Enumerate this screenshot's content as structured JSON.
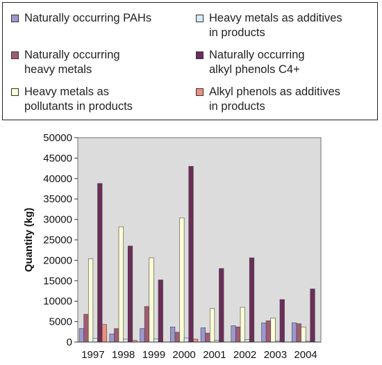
{
  "chart_data": {
    "type": "bar",
    "title": "",
    "xlabel": "",
    "ylabel": "Quantity (kg)",
    "ylim": [
      0,
      50000
    ],
    "yticks": [
      0,
      5000,
      10000,
      15000,
      20000,
      25000,
      30000,
      35000,
      40000,
      45000,
      50000
    ],
    "grid": false,
    "legend_position": "top",
    "categories": [
      "1997",
      "1998",
      "1999",
      "2000",
      "2001",
      "2002",
      "2003",
      "2004"
    ],
    "series": [
      {
        "name": "Naturally occurring PAHs",
        "color": "#9b97cf",
        "values": [
          3300,
          2000,
          3300,
          3700,
          3500,
          4000,
          4700,
          4700
        ]
      },
      {
        "name": "Naturally occurring\nheavy metals",
        "color": "#a05c72",
        "values": [
          6800,
          3300,
          8700,
          2400,
          2200,
          3700,
          5200,
          4500
        ]
      },
      {
        "name": "Heavy metals as\npollutants in products",
        "color": "#fdfdd5",
        "values": [
          20400,
          28200,
          20600,
          30400,
          8200,
          8500,
          5900,
          3700
        ]
      },
      {
        "name": "Heavy metals as additives\nin products",
        "color": "#d2ecf6",
        "values": [
          900,
          700,
          800,
          1000,
          400,
          600,
          300,
          200
        ]
      },
      {
        "name": "Naturally occurring\nalkyl phenols C4+",
        "color": "#6b2e58",
        "values": [
          38800,
          23500,
          15200,
          43000,
          18000,
          20600,
          10400,
          13000
        ]
      },
      {
        "name": "Alkyl phenols as additives\nin products",
        "color": "#ee8f82",
        "values": [
          4300,
          400,
          0,
          700,
          0,
          0,
          0,
          0
        ]
      }
    ]
  }
}
